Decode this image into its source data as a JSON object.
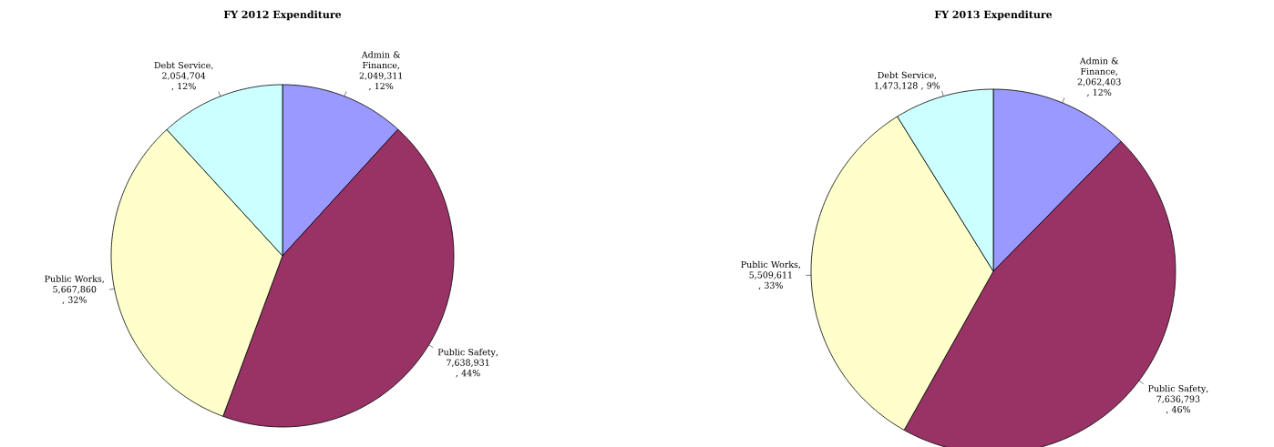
{
  "chart_data": [
    {
      "type": "pie",
      "title": "FY 2012 Expenditure",
      "categories": [
        "Admin & Finance",
        "Public Safety",
        "Public Works",
        "Debt Service"
      ],
      "values": [
        2049311,
        7638931,
        5667860,
        2054704
      ],
      "colors": [
        "#9999ff",
        "#993366",
        "#ffffcc",
        "#ccffff"
      ],
      "value_labels": [
        ", 2,049,311 , 12%",
        ", 7,638,931 , 44%",
        ", 5,667,860 , 32%",
        ", 2,054,704 , 12%"
      ]
    },
    {
      "type": "pie",
      "title": "FY 2013 Expenditure",
      "categories": [
        "Admin & Finance",
        "Public Safety",
        "Public Works",
        "Debt Service"
      ],
      "values": [
        2062403,
        7636793,
        5509611,
        1473128
      ],
      "colors": [
        "#9999ff",
        "#993366",
        "#ffffcc",
        "#ccffff"
      ],
      "value_labels": [
        ", 2,062,403 , 12%",
        ", 7,636,793 , 46%",
        ", 5,509,611 , 33%",
        ", 1,473,128 , 9%"
      ]
    }
  ]
}
